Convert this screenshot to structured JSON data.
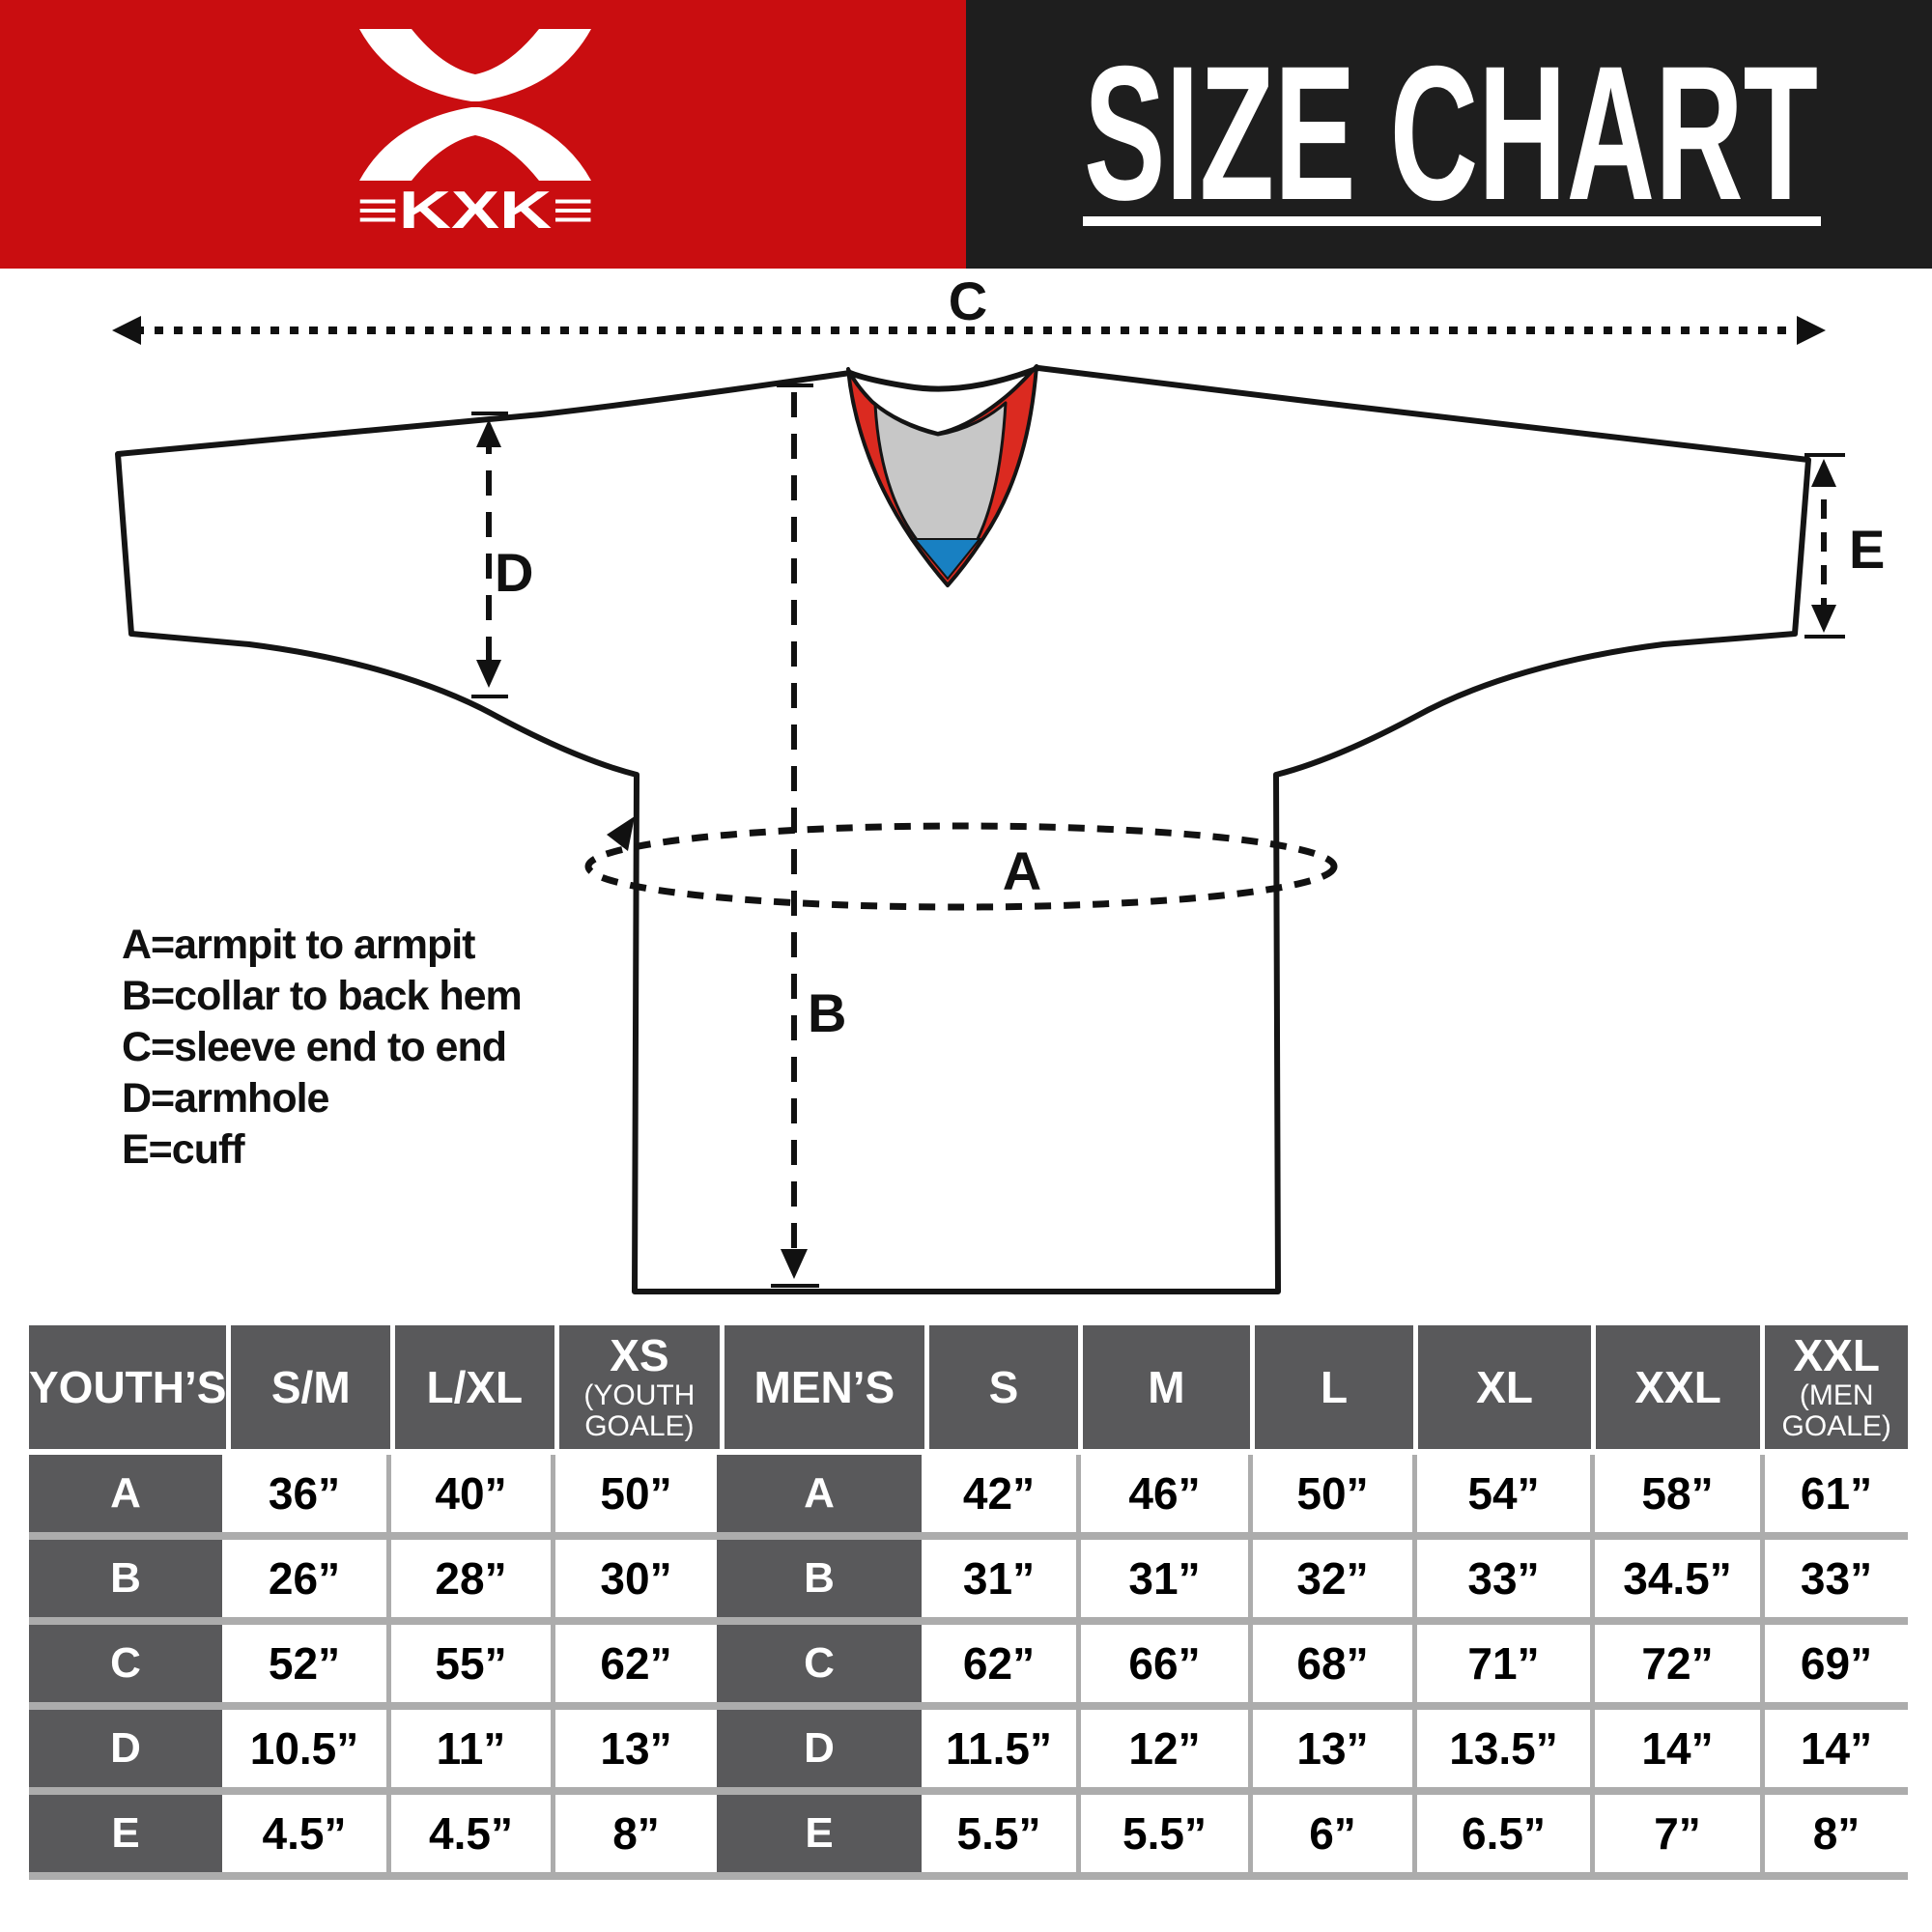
{
  "header": {
    "title": "SIZE CHART",
    "brand": {
      "name": "KXK",
      "wordmark": "≡KXK≡"
    }
  },
  "colors": {
    "brand_red": "#C90D10",
    "header_black": "#1E1E1E",
    "collar_red": "#DB2A20",
    "collar_gray": "#C7C7C7",
    "collar_blue": "#1880C2",
    "table_header_gray": "#59595B",
    "separator_gray": "#ACACAC"
  },
  "diagram": {
    "labels": {
      "a": "A",
      "b": "B",
      "c": "C",
      "d": "D",
      "e": "E"
    },
    "legend": [
      "A=armpit to armpit",
      "B=collar to back hem",
      "C=sleeve end to end",
      "D=armhole",
      "E=cuff"
    ]
  },
  "table": {
    "columns": [
      {
        "label": "YOUTH’S",
        "group": true
      },
      {
        "label": "S/M"
      },
      {
        "label": "L/XL"
      },
      {
        "label": "XS",
        "sub": "(YOUTH GOALE)"
      },
      {
        "label": "MEN’S",
        "group": true
      },
      {
        "label": "S"
      },
      {
        "label": "M"
      },
      {
        "label": "L"
      },
      {
        "label": "XL"
      },
      {
        "label": "XXL"
      },
      {
        "label": "XXL",
        "sub": "(MEN GOALE)"
      }
    ],
    "rows": [
      {
        "label": "A",
        "youth": [
          "36”",
          "40”",
          "50”"
        ],
        "men": [
          "42”",
          "46”",
          "50”",
          "54”",
          "58”",
          "61”"
        ]
      },
      {
        "label": "B",
        "youth": [
          "26”",
          "28”",
          "30”"
        ],
        "men": [
          "31”",
          "31”",
          "32”",
          "33”",
          "34.5”",
          "33”"
        ]
      },
      {
        "label": "C",
        "youth": [
          "52”",
          "55”",
          "62”"
        ],
        "men": [
          "62”",
          "66”",
          "68”",
          "71”",
          "72”",
          "69”"
        ]
      },
      {
        "label": "D",
        "youth": [
          "10.5”",
          "11”",
          "13”"
        ],
        "men": [
          "11.5”",
          "12”",
          "13”",
          "13.5”",
          "14”",
          "14”"
        ]
      },
      {
        "label": "E",
        "youth": [
          "4.5”",
          "4.5”",
          "8”"
        ],
        "men": [
          "5.5”",
          "5.5”",
          "6”",
          "6.5”",
          "7”",
          "8”"
        ]
      }
    ]
  }
}
